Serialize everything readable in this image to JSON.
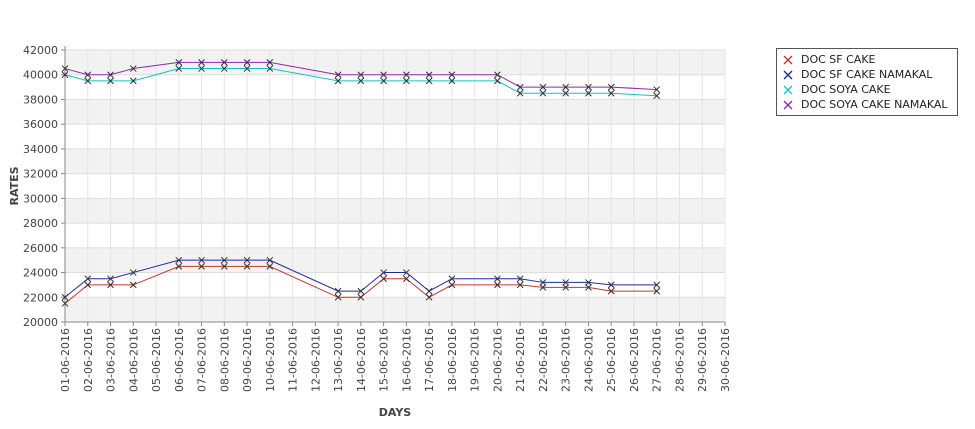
{
  "chart_data": {
    "type": "line",
    "title": "",
    "xlabel": "DAYS",
    "ylabel": "RATES",
    "ylim": [
      20000,
      42000
    ],
    "yticks": [
      20000,
      22000,
      24000,
      26000,
      28000,
      30000,
      32000,
      34000,
      36000,
      38000,
      40000,
      42000
    ],
    "ytick_labels": [
      "20000",
      "22000",
      "24000",
      "26000",
      "28000",
      "30000",
      "32000",
      "34000",
      "36000",
      "38000",
      "40000",
      "42000"
    ],
    "categories": [
      "01-06-2016",
      "02-06-2016",
      "03-06-2016",
      "04-06-2016",
      "05-06-2016",
      "06-06-2016",
      "07-06-2016",
      "08-06-2016",
      "09-06-2016",
      "10-06-2016",
      "11-06-2016",
      "12-06-2016",
      "13-06-2016",
      "14-06-2016",
      "15-06-2016",
      "16-06-2016",
      "17-06-2016",
      "18-06-2016",
      "19-06-2016",
      "20-06-2016",
      "21-06-2016",
      "22-06-2016",
      "23-06-2016",
      "24-06-2016",
      "25-06-2016",
      "26-06-2016",
      "27-06-2016",
      "28-06-2016",
      "29-06-2016",
      "30-06-2016"
    ],
    "grid": true,
    "legend_position": "top-right",
    "series": [
      {
        "name": "DOC SF CAKE",
        "color": "#c0392b",
        "points": [
          [
            "01-06-2016",
            21500
          ],
          [
            "02-06-2016",
            23000
          ],
          [
            "03-06-2016",
            23000
          ],
          [
            "04-06-2016",
            23000
          ],
          [
            "06-06-2016",
            24500
          ],
          [
            "07-06-2016",
            24500
          ],
          [
            "08-06-2016",
            24500
          ],
          [
            "09-06-2016",
            24500
          ],
          [
            "10-06-2016",
            24500
          ],
          [
            "13-06-2016",
            22000
          ],
          [
            "14-06-2016",
            22000
          ],
          [
            "15-06-2016",
            23500
          ],
          [
            "16-06-2016",
            23500
          ],
          [
            "17-06-2016",
            22000
          ],
          [
            "18-06-2016",
            23000
          ],
          [
            "20-06-2016",
            23000
          ],
          [
            "21-06-2016",
            23000
          ],
          [
            "22-06-2016",
            22800
          ],
          [
            "23-06-2016",
            22800
          ],
          [
            "24-06-2016",
            22800
          ],
          [
            "25-06-2016",
            22500
          ],
          [
            "27-06-2016",
            22500
          ]
        ]
      },
      {
        "name": "DOC SF CAKE NAMAKAL",
        "color": "#1f2a9a",
        "points": [
          [
            "01-06-2016",
            22000
          ],
          [
            "02-06-2016",
            23500
          ],
          [
            "03-06-2016",
            23500
          ],
          [
            "04-06-2016",
            24000
          ],
          [
            "06-06-2016",
            25000
          ],
          [
            "07-06-2016",
            25000
          ],
          [
            "08-06-2016",
            25000
          ],
          [
            "09-06-2016",
            25000
          ],
          [
            "10-06-2016",
            25000
          ],
          [
            "13-06-2016",
            22500
          ],
          [
            "14-06-2016",
            22500
          ],
          [
            "15-06-2016",
            24000
          ],
          [
            "16-06-2016",
            24000
          ],
          [
            "17-06-2016",
            22500
          ],
          [
            "18-06-2016",
            23500
          ],
          [
            "20-06-2016",
            23500
          ],
          [
            "21-06-2016",
            23500
          ],
          [
            "22-06-2016",
            23200
          ],
          [
            "23-06-2016",
            23200
          ],
          [
            "24-06-2016",
            23200
          ],
          [
            "25-06-2016",
            23000
          ],
          [
            "27-06-2016",
            23000
          ]
        ]
      },
      {
        "name": "DOC SOYA CAKE",
        "color": "#17c2c2",
        "points": [
          [
            "01-06-2016",
            40000
          ],
          [
            "02-06-2016",
            39500
          ],
          [
            "03-06-2016",
            39500
          ],
          [
            "04-06-2016",
            39500
          ],
          [
            "06-06-2016",
            40500
          ],
          [
            "07-06-2016",
            40500
          ],
          [
            "08-06-2016",
            40500
          ],
          [
            "09-06-2016",
            40500
          ],
          [
            "10-06-2016",
            40500
          ],
          [
            "13-06-2016",
            39500
          ],
          [
            "14-06-2016",
            39500
          ],
          [
            "15-06-2016",
            39500
          ],
          [
            "16-06-2016",
            39500
          ],
          [
            "17-06-2016",
            39500
          ],
          [
            "18-06-2016",
            39500
          ],
          [
            "20-06-2016",
            39500
          ],
          [
            "21-06-2016",
            38500
          ],
          [
            "22-06-2016",
            38500
          ],
          [
            "23-06-2016",
            38500
          ],
          [
            "24-06-2016",
            38500
          ],
          [
            "25-06-2016",
            38500
          ],
          [
            "27-06-2016",
            38300
          ]
        ]
      },
      {
        "name": "DOC SOYA CAKE NAMAKAL",
        "color": "#8e2aa8",
        "points": [
          [
            "01-06-2016",
            40500
          ],
          [
            "02-06-2016",
            40000
          ],
          [
            "03-06-2016",
            40000
          ],
          [
            "04-06-2016",
            40500
          ],
          [
            "06-06-2016",
            41000
          ],
          [
            "07-06-2016",
            41000
          ],
          [
            "08-06-2016",
            41000
          ],
          [
            "09-06-2016",
            41000
          ],
          [
            "10-06-2016",
            41000
          ],
          [
            "13-06-2016",
            40000
          ],
          [
            "14-06-2016",
            40000
          ],
          [
            "15-06-2016",
            40000
          ],
          [
            "16-06-2016",
            40000
          ],
          [
            "17-06-2016",
            40000
          ],
          [
            "18-06-2016",
            40000
          ],
          [
            "20-06-2016",
            40000
          ],
          [
            "21-06-2016",
            39000
          ],
          [
            "22-06-2016",
            39000
          ],
          [
            "23-06-2016",
            39000
          ],
          [
            "24-06-2016",
            39000
          ],
          [
            "25-06-2016",
            39000
          ],
          [
            "27-06-2016",
            38800
          ]
        ]
      }
    ]
  }
}
